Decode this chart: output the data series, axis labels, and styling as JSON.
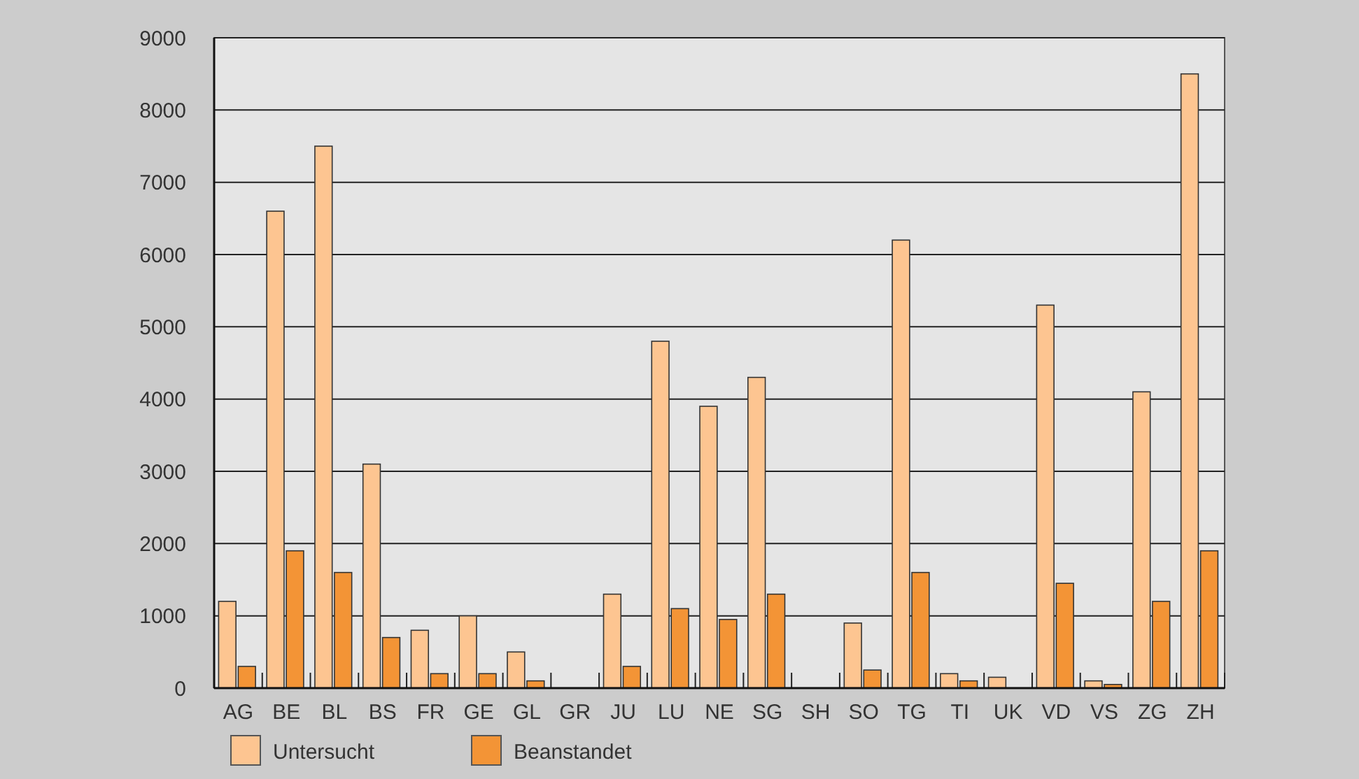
{
  "chart_data": {
    "type": "bar",
    "categories": [
      "AG",
      "BE",
      "BL",
      "BS",
      "FR",
      "GE",
      "GL",
      "GR",
      "JU",
      "LU",
      "NE",
      "SG",
      "SH",
      "SO",
      "TG",
      "TI",
      "UK",
      "VD",
      "VS",
      "ZG",
      "ZH"
    ],
    "series": [
      {
        "name": "Untersucht",
        "color": "#fdc591",
        "values": [
          1200,
          6600,
          7500,
          3100,
          800,
          1000,
          500,
          0,
          1300,
          4800,
          3900,
          4300,
          0,
          900,
          6200,
          200,
          150,
          5300,
          100,
          4100,
          8500
        ]
      },
      {
        "name": "Beanstandet",
        "color": "#f39436",
        "values": [
          300,
          1900,
          1600,
          700,
          200,
          200,
          100,
          0,
          300,
          1100,
          950,
          1300,
          0,
          250,
          1600,
          100,
          0,
          1450,
          50,
          1200,
          1900
        ]
      }
    ],
    "ylim": [
      0,
      9000
    ],
    "yticks": [
      0,
      1000,
      2000,
      3000,
      4000,
      5000,
      6000,
      7000,
      8000,
      9000
    ],
    "grid": "y",
    "legend": "bottom left"
  }
}
